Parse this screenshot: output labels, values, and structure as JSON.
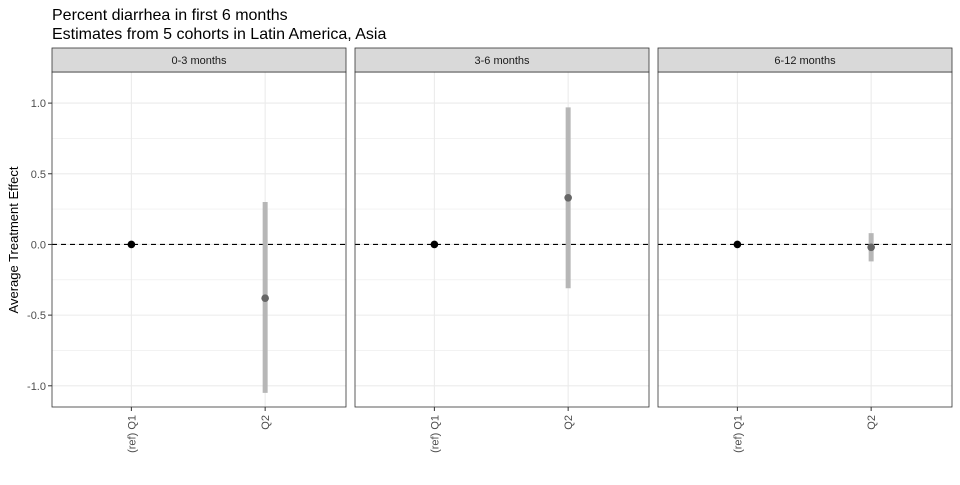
{
  "chart_data": {
    "type": "scatter",
    "title": "Percent diarrhea in first 6 months",
    "subtitle": "Estimates from 5 cohorts in Latin America, Asia",
    "ylabel": "Average Treatment Effect",
    "xlabel": "",
    "ylim": [
      -1.15,
      1.22
    ],
    "yticks": [
      "1.0",
      "0.5",
      "0.0",
      "-0.5",
      "-1.0"
    ],
    "ytick_values": [
      1.0,
      0.5,
      0.0,
      -0.5,
      -1.0
    ],
    "categories": [
      "(ref) Q1",
      "Q2"
    ],
    "reference_line": 0,
    "grid": true,
    "colors": {
      "strip_fill": "#d9d9d9",
      "strip_border": "#333333",
      "grid": "#ebebeb",
      "panel_border": "#333333",
      "ref_point": "#000000",
      "estimate_point": "#666666",
      "ci_bar": "#b3b3b3"
    },
    "panels": [
      {
        "label": "0-3 months",
        "points": [
          {
            "x": "(ref) Q1",
            "y": 0.0,
            "lower": 0.0,
            "upper": 0.0,
            "reference": true
          },
          {
            "x": "Q2",
            "y": -0.38,
            "lower": -1.05,
            "upper": 0.3,
            "reference": false
          }
        ]
      },
      {
        "label": "3-6 months",
        "points": [
          {
            "x": "(ref) Q1",
            "y": 0.0,
            "lower": 0.0,
            "upper": 0.0,
            "reference": true
          },
          {
            "x": "Q2",
            "y": 0.33,
            "lower": -0.31,
            "upper": 0.97,
            "reference": false
          }
        ]
      },
      {
        "label": "6-12 months",
        "points": [
          {
            "x": "(ref) Q1",
            "y": 0.0,
            "lower": 0.0,
            "upper": 0.0,
            "reference": true
          },
          {
            "x": "Q2",
            "y": -0.02,
            "lower": -0.12,
            "upper": 0.08,
            "reference": false
          }
        ]
      }
    ]
  }
}
